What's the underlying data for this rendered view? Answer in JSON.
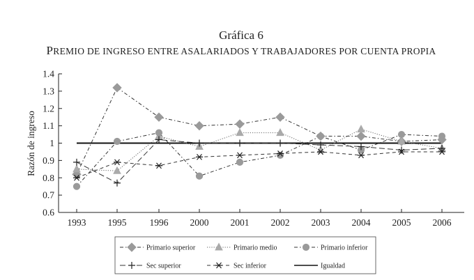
{
  "chart_data": {
    "type": "line",
    "title": "Gráfica 6",
    "subtitle": "Premio de ingreso entre asalariados y trabajadores por cuenta propia",
    "xlabel": "",
    "ylabel": "Razón de ingreso",
    "categories": [
      "1993",
      "1995",
      "1996",
      "2000",
      "2001",
      "2002",
      "2003",
      "2004",
      "2005",
      "2006"
    ],
    "ylim": [
      0.6,
      1.4
    ],
    "yticks": [
      "0.6",
      "0.7",
      "0.8",
      "0.9",
      "1",
      "1.1",
      "1.2",
      "1.3",
      "1.4"
    ],
    "grid": false,
    "legend_position": "bottom",
    "series": [
      {
        "name": "Primario superior",
        "marker": "diamond",
        "dash": "dash-dot",
        "color": "#9a9a9a",
        "values": [
          0.82,
          1.32,
          1.15,
          1.1,
          1.11,
          1.15,
          1.04,
          1.04,
          1.01,
          1.02
        ]
      },
      {
        "name": "Primario medio",
        "marker": "triangle",
        "dash": "dotted",
        "color": "#aaaaaa",
        "values": [
          0.85,
          0.84,
          1.04,
          0.98,
          1.06,
          1.06,
          0.96,
          1.08,
          1.01,
          0.97
        ]
      },
      {
        "name": "Primario inferior",
        "marker": "circle",
        "dash": "dash-dot",
        "color": "#9a9a9a",
        "values": [
          0.75,
          1.01,
          1.06,
          0.81,
          0.89,
          0.93,
          1.04,
          0.96,
          1.05,
          1.04
        ]
      },
      {
        "name": "Sec superior",
        "marker": "plus",
        "dash": "long-dash",
        "color": "#222222",
        "values": [
          0.89,
          0.77,
          1.02,
          1.0,
          1.0,
          1.0,
          0.99,
          0.98,
          0.96,
          0.97
        ]
      },
      {
        "name": "Sec inferior",
        "marker": "asterisk",
        "dash": "dash",
        "color": "#222222",
        "values": [
          0.8,
          0.89,
          0.87,
          0.92,
          0.93,
          0.94,
          0.95,
          0.93,
          0.95,
          0.95
        ]
      },
      {
        "name": "Igualdad",
        "marker": "none",
        "dash": "solid",
        "color": "#111111",
        "values": [
          1,
          1,
          1,
          1,
          1,
          1,
          1,
          1,
          1,
          1
        ]
      }
    ]
  }
}
